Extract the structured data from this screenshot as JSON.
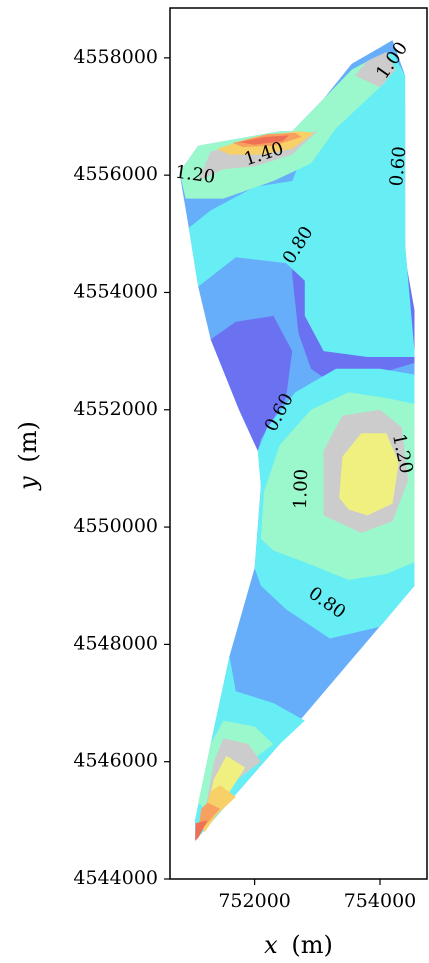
{
  "chart_data": {
    "type": "contour",
    "title": "",
    "xlabel": "x (m)",
    "xlabel_var": "x",
    "xlabel_unit": "(m)",
    "ylabel": "y (m)",
    "ylabel_var": "y",
    "ylabel_unit": "(m)",
    "xlim": [
      750650,
      754750
    ],
    "ylim": [
      4544000,
      4558850
    ],
    "x_ticks": [
      752000,
      754000
    ],
    "y_ticks": [
      4544000,
      4546000,
      4548000,
      4550000,
      4552000,
      4554000,
      4556000,
      4558000
    ],
    "x_tick_labels": [
      "752000",
      "754000"
    ],
    "y_tick_labels": [
      "4544000",
      "4546000",
      "4548000",
      "4550000",
      "4552000",
      "4554000",
      "4556000",
      "4558000"
    ],
    "grid": false,
    "legend": "none",
    "levels": [
      0.5,
      0.6,
      0.7,
      0.8,
      0.9,
      1.0,
      1.1,
      1.2,
      1.3,
      1.4,
      1.5
    ],
    "level_colors": {
      "0.5": "#5a5ce0",
      "0.6": "#6a72f2",
      "0.7": "#66adfa",
      "0.8": "#66eef4",
      "0.9": "#9af8cc",
      "1.0": "#c8f890",
      "1.1": "#f0f080",
      "1.2": "#f8d068",
      "1.3": "#f8a060",
      "1.4": "#f07055",
      "1.5": "#e05050"
    },
    "domain_boundary": [
      [
        750800,
        4556050
      ],
      [
        751100,
        4556500
      ],
      [
        752400,
        4556750
      ],
      [
        752600,
        4556750
      ],
      [
        753100,
        4557300
      ],
      [
        753550,
        4557900
      ],
      [
        754200,
        4558300
      ],
      [
        754400,
        4557700
      ],
      [
        754400,
        4554800
      ],
      [
        754550,
        4553000
      ],
      [
        754550,
        4549000
      ],
      [
        752400,
        4546300
      ],
      [
        751050,
        4544650
      ],
      [
        751050,
        4545000
      ],
      [
        751300,
        4546300
      ],
      [
        751600,
        4547800
      ],
      [
        752000,
        4549300
      ],
      [
        752100,
        4550700
      ],
      [
        752050,
        4551300
      ],
      [
        751750,
        4552000
      ],
      [
        751300,
        4553200
      ],
      [
        751100,
        4554100
      ],
      [
        750950,
        4555100
      ]
    ],
    "contour_regions": [
      {
        "level": 0.7,
        "polygon": [
          [
            750800,
            4556050
          ],
          [
            751100,
            4556500
          ],
          [
            752400,
            4556750
          ],
          [
            752600,
            4556750
          ],
          [
            753100,
            4557300
          ],
          [
            753550,
            4557900
          ],
          [
            754200,
            4558300
          ],
          [
            754400,
            4557700
          ],
          [
            754400,
            4554800
          ],
          [
            754550,
            4553000
          ],
          [
            754550,
            4549000
          ],
          [
            752400,
            4546300
          ],
          [
            751050,
            4544650
          ],
          [
            751050,
            4545000
          ],
          [
            751300,
            4546300
          ],
          [
            751600,
            4547800
          ],
          [
            752000,
            4549300
          ],
          [
            752100,
            4550700
          ],
          [
            752050,
            4551300
          ],
          [
            751750,
            4552000
          ],
          [
            751300,
            4553200
          ],
          [
            751100,
            4554100
          ],
          [
            750950,
            4555100
          ]
        ]
      },
      {
        "level": 0.6,
        "polygon": [
          [
            752600,
            4555300
          ],
          [
            753000,
            4555600
          ],
          [
            753250,
            4557000
          ],
          [
            753600,
            4557400
          ],
          [
            754200,
            4557600
          ],
          [
            754400,
            4557200
          ],
          [
            754400,
            4554600
          ],
          [
            754550,
            4553700
          ],
          [
            754550,
            4552800
          ],
          [
            753300,
            4552400
          ],
          [
            752900,
            4552700
          ],
          [
            752700,
            4553300
          ],
          [
            752600,
            4554300
          ]
        ]
      },
      {
        "level": 0.6,
        "polygon": [
          [
            751300,
            4553200
          ],
          [
            751700,
            4553500
          ],
          [
            752300,
            4553600
          ],
          [
            752600,
            4553000
          ],
          [
            752500,
            4552200
          ],
          [
            752100,
            4551500
          ],
          [
            752050,
            4551300
          ],
          [
            751750,
            4552000
          ]
        ]
      },
      {
        "level": 0.5,
        "polygon": [
          [
            753300,
            4556500
          ],
          [
            753500,
            4557000
          ],
          [
            753900,
            4557300
          ],
          [
            754200,
            4557200
          ],
          [
            754400,
            4556400
          ],
          [
            754300,
            4555600
          ],
          [
            754000,
            4555500
          ],
          [
            753600,
            4555700
          ],
          [
            753400,
            4556000
          ]
        ]
      },
      {
        "level": 0.8,
        "polygon": [
          [
            750950,
            4555100
          ],
          [
            751300,
            4555400
          ],
          [
            752000,
            4555800
          ],
          [
            752600,
            4555900
          ],
          [
            752900,
            4556700
          ],
          [
            753400,
            4557300
          ],
          [
            753800,
            4557800
          ],
          [
            754200,
            4558100
          ],
          [
            754400,
            4557700
          ],
          [
            754400,
            4554800
          ],
          [
            754550,
            4553000
          ],
          [
            754550,
            4552900
          ],
          [
            753800,
            4552900
          ],
          [
            753100,
            4553000
          ],
          [
            752800,
            4553600
          ],
          [
            752800,
            4554200
          ],
          [
            752500,
            4554500
          ],
          [
            751700,
            4554600
          ],
          [
            751100,
            4554100
          ]
        ]
      },
      {
        "level": 0.8,
        "polygon": [
          [
            752000,
            4549300
          ],
          [
            752100,
            4550700
          ],
          [
            752050,
            4551300
          ],
          [
            752200,
            4551700
          ],
          [
            752650,
            4552300
          ],
          [
            753300,
            4552700
          ],
          [
            754000,
            4552700
          ],
          [
            754550,
            4552600
          ],
          [
            754550,
            4549000
          ],
          [
            754000,
            4548300
          ],
          [
            753200,
            4548100
          ],
          [
            752500,
            4548600
          ],
          [
            752100,
            4549000
          ]
        ]
      },
      {
        "level": 0.8,
        "polygon": [
          [
            751050,
            4544650
          ],
          [
            752400,
            4546300
          ],
          [
            752800,
            4546700
          ],
          [
            752300,
            4547000
          ],
          [
            751700,
            4547200
          ],
          [
            751600,
            4547800
          ],
          [
            751300,
            4546300
          ],
          [
            751050,
            4545000
          ]
        ]
      },
      {
        "level": 0.9,
        "polygon": [
          [
            750800,
            4556050
          ],
          [
            751100,
            4556500
          ],
          [
            752400,
            4556750
          ],
          [
            752600,
            4556750
          ],
          [
            753100,
            4557300
          ],
          [
            753550,
            4557800
          ],
          [
            753900,
            4558000
          ],
          [
            754100,
            4557600
          ],
          [
            753800,
            4557300
          ],
          [
            753300,
            4556800
          ],
          [
            752900,
            4556200
          ],
          [
            752300,
            4555900
          ],
          [
            751500,
            4555600
          ],
          [
            750900,
            4555600
          ]
        ]
      },
      {
        "level": 0.9,
        "polygon": [
          [
            752100,
            4549800
          ],
          [
            752150,
            4550600
          ],
          [
            752400,
            4551400
          ],
          [
            752900,
            4552000
          ],
          [
            753500,
            4552300
          ],
          [
            754100,
            4552200
          ],
          [
            754550,
            4552100
          ],
          [
            754550,
            4549400
          ],
          [
            754100,
            4549200
          ],
          [
            753500,
            4549100
          ],
          [
            752800,
            4549400
          ],
          [
            752300,
            4549600
          ]
        ]
      },
      {
        "level": 0.9,
        "polygon": [
          [
            751100,
            4545300
          ],
          [
            751300,
            4546300
          ],
          [
            751500,
            4546700
          ],
          [
            752000,
            4546600
          ],
          [
            752300,
            4546300
          ],
          [
            751800,
            4545900
          ],
          [
            751300,
            4545100
          ]
        ]
      },
      {
        "level": 1.0,
        "polygon": [
          [
            753100,
            4550200
          ],
          [
            753100,
            4551300
          ],
          [
            753400,
            4551900
          ],
          [
            754000,
            4552000
          ],
          [
            754350,
            4551700
          ],
          [
            754450,
            4550800
          ],
          [
            754200,
            4550100
          ],
          [
            753700,
            4549900
          ]
        ]
      },
      {
        "level": 1.0,
        "polygon": [
          [
            751100,
            4555900
          ],
          [
            751300,
            4556400
          ],
          [
            752100,
            4556650
          ],
          [
            752700,
            4556700
          ],
          [
            753000,
            4556750
          ],
          [
            752600,
            4556350
          ],
          [
            752000,
            4556150
          ],
          [
            751500,
            4556100
          ]
        ]
      },
      {
        "level": 1.0,
        "polygon": [
          [
            753600,
            4557700
          ],
          [
            753800,
            4557950
          ],
          [
            754100,
            4558100
          ],
          [
            754250,
            4557800
          ],
          [
            754000,
            4557500
          ]
        ]
      },
      {
        "level": 1.0,
        "polygon": [
          [
            751200,
            4545100
          ],
          [
            751350,
            4546000
          ],
          [
            751500,
            4546400
          ],
          [
            751900,
            4546300
          ],
          [
            752100,
            4546000
          ],
          [
            751600,
            4545600
          ],
          [
            751250,
            4545000
          ]
        ]
      },
      {
        "level": 1.1,
        "polygon": [
          [
            753350,
            4550500
          ],
          [
            753400,
            4551200
          ],
          [
            753700,
            4551600
          ],
          [
            754100,
            4551600
          ],
          [
            754300,
            4551100
          ],
          [
            754200,
            4550400
          ],
          [
            753800,
            4550200
          ],
          [
            753500,
            4550300
          ]
        ]
      },
      {
        "level": 1.1,
        "polygon": [
          [
            751200,
            4545000
          ],
          [
            751350,
            4545700
          ],
          [
            751550,
            4546100
          ],
          [
            751850,
            4545900
          ],
          [
            751550,
            4545400
          ],
          [
            751250,
            4544900
          ]
        ]
      },
      {
        "level": 1.2,
        "polygon": [
          [
            751400,
            4556450
          ],
          [
            752000,
            4556650
          ],
          [
            752700,
            4556750
          ],
          [
            752950,
            4556720
          ],
          [
            752600,
            4556450
          ],
          [
            752100,
            4556350
          ],
          [
            751600,
            4556350
          ]
        ]
      },
      {
        "level": 1.2,
        "polygon": [
          [
            751150,
            4544900
          ],
          [
            751300,
            4545500
          ],
          [
            751450,
            4545600
          ],
          [
            751700,
            4545400
          ],
          [
            751400,
            4545100
          ],
          [
            751200,
            4544800
          ]
        ]
      },
      {
        "level": 1.3,
        "polygon": [
          [
            751650,
            4556550
          ],
          [
            752200,
            4556700
          ],
          [
            752650,
            4556720
          ],
          [
            752750,
            4556650
          ],
          [
            752300,
            4556500
          ],
          [
            751800,
            4556480
          ]
        ]
      },
      {
        "level": 1.3,
        "polygon": [
          [
            751080,
            4544700
          ],
          [
            751150,
            4545200
          ],
          [
            751250,
            4545300
          ],
          [
            751450,
            4545200
          ],
          [
            751200,
            4544900
          ],
          [
            751080,
            4544680
          ]
        ]
      },
      {
        "level": 1.4,
        "polygon": [
          [
            751750,
            4556560
          ],
          [
            752150,
            4556650
          ],
          [
            752550,
            4556680
          ],
          [
            752450,
            4556580
          ],
          [
            752000,
            4556520
          ]
        ]
      },
      {
        "level": 1.4,
        "polygon": [
          [
            751050,
            4544650
          ],
          [
            751060,
            4544950
          ],
          [
            751250,
            4545000
          ],
          [
            751100,
            4544700
          ]
        ]
      }
    ],
    "contour_labels": [
      {
        "text": "1.00",
        "x": 754200,
        "y": 4557950,
        "angle": -55
      },
      {
        "text": "0.60",
        "x": 754300,
        "y": 4556150,
        "angle": -85
      },
      {
        "text": "1.40",
        "x": 752150,
        "y": 4556350,
        "angle": -18
      },
      {
        "text": "1.20",
        "x": 751050,
        "y": 4556000,
        "angle": 8
      },
      {
        "text": "0.80",
        "x": 752700,
        "y": 4554800,
        "angle": -58
      },
      {
        "text": "0.60",
        "x": 752400,
        "y": 4551950,
        "angle": -62
      },
      {
        "text": "1.20",
        "x": 754350,
        "y": 4551250,
        "angle": 78
      },
      {
        "text": "1.00",
        "x": 752750,
        "y": 4550650,
        "angle": -88
      },
      {
        "text": "0.80",
        "x": 753150,
        "y": 4548700,
        "angle": 35
      }
    ]
  }
}
